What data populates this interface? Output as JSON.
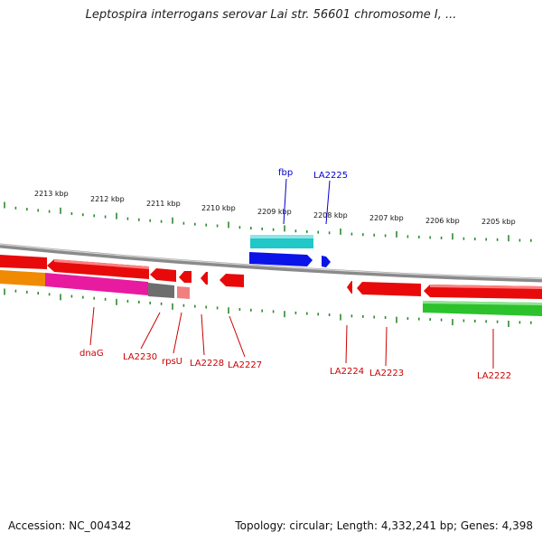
{
  "title": "Leptospira interrogans serovar Lai str. 56601 chromosome I, ...",
  "footer": {
    "accession": "Accession: NC_004342",
    "summary": "Topology: circular; Length: 4,332,241 bp; Genes: 4,398"
  },
  "colors": {
    "backbone": "#8a8a8a",
    "tick": "#2e8b2e",
    "forward_label": "#0000cc",
    "reverse_label": "#cc0000"
  },
  "ruler_labels": [
    "2213 kbp",
    "2212 kbp",
    "2211 kbp",
    "2210 kbp",
    "2209 kbp",
    "2208 kbp",
    "2207 kbp",
    "2206 kbp",
    "2205 kbp"
  ],
  "gene_labels": [
    {
      "text": "fbp",
      "strand": "forward"
    },
    {
      "text": "LA2225",
      "strand": "forward"
    },
    {
      "text": "dnaG",
      "strand": "reverse"
    },
    {
      "text": "LA2230",
      "strand": "reverse"
    },
    {
      "text": "rpsU",
      "strand": "reverse"
    },
    {
      "text": "LA2228",
      "strand": "reverse"
    },
    {
      "text": "LA2227",
      "strand": "reverse"
    },
    {
      "text": "LA2224",
      "strand": "reverse"
    },
    {
      "text": "LA2223",
      "strand": "reverse"
    },
    {
      "text": "LA2222",
      "strand": "reverse"
    }
  ]
}
